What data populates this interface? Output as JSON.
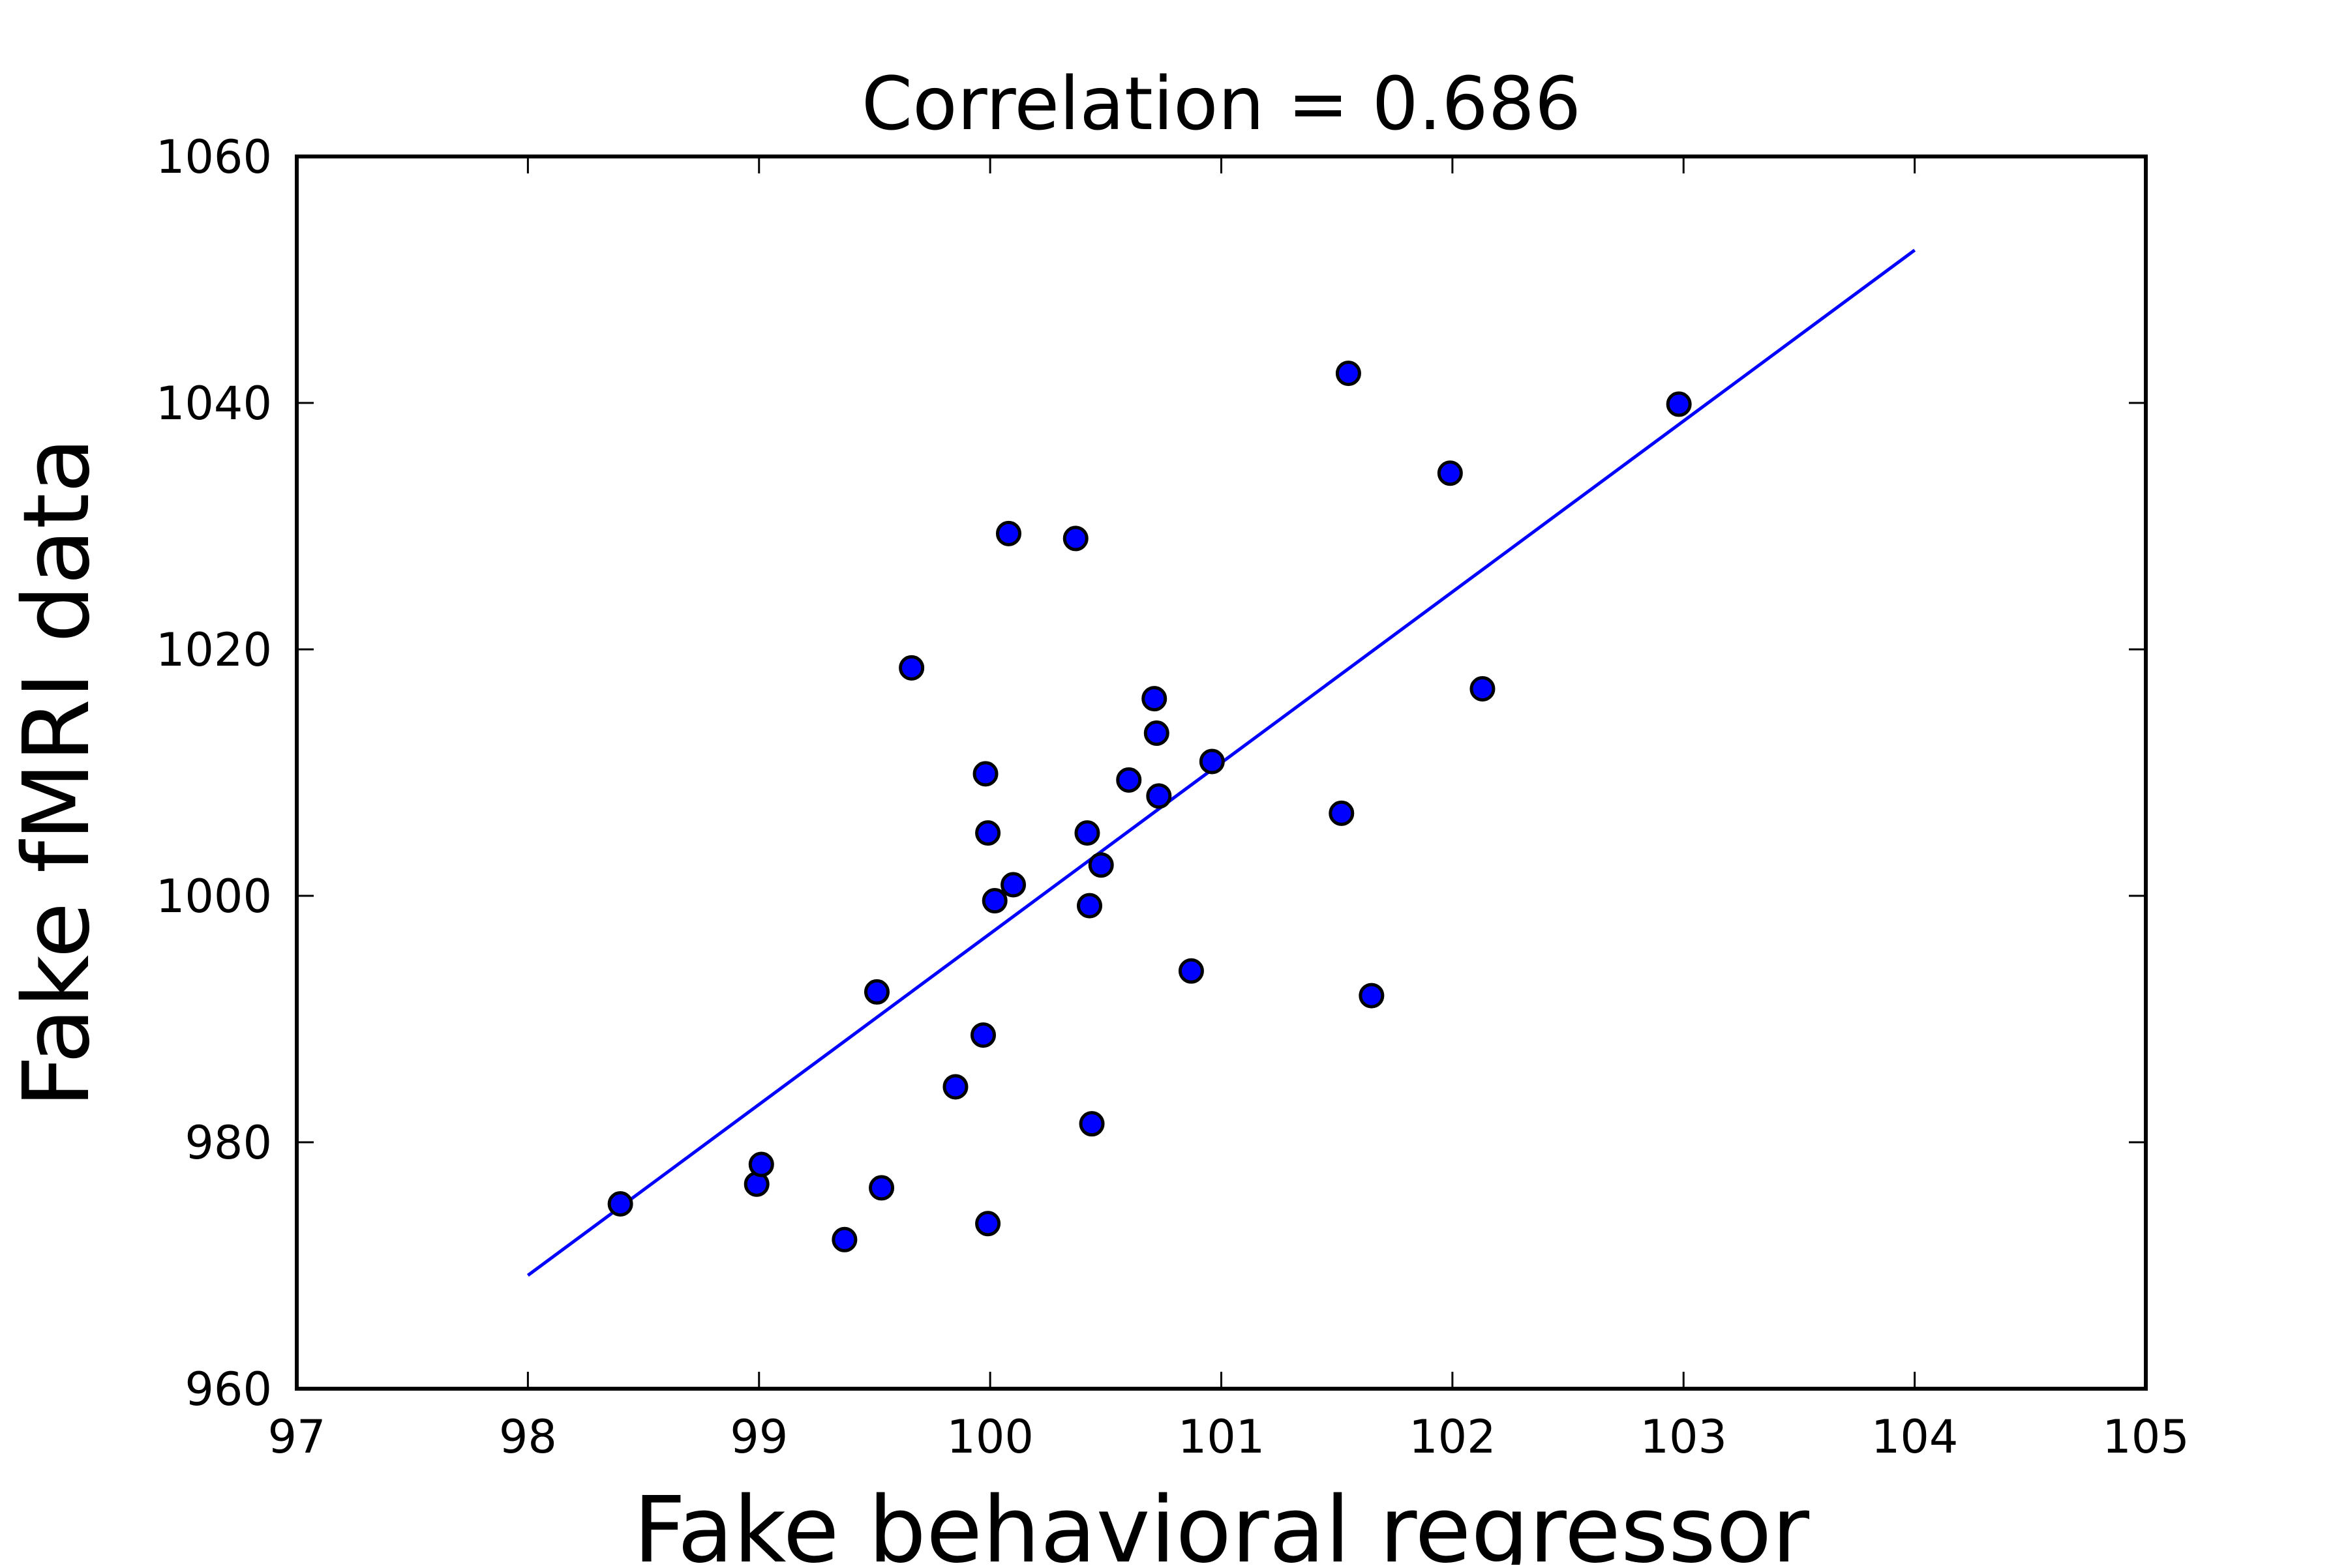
{
  "chart_data": {
    "type": "scatter",
    "title": "Correlation = 0.686",
    "xlabel": "Fake behavioral regressor",
    "ylabel": "Fake fMRI data",
    "xlim": [
      97,
      105
    ],
    "ylim": [
      960,
      1060
    ],
    "xticks": [
      "97",
      "98",
      "99",
      "100",
      "101",
      "102",
      "103",
      "104",
      "105"
    ],
    "yticks": [
      "960",
      "980",
      "1000",
      "1020",
      "1040",
      "1060"
    ],
    "grid": false,
    "legend": "none",
    "colors": {
      "points": "#0000ff",
      "line": "#0000ff",
      "edge": "#000000"
    },
    "series": [
      {
        "type": "scatter",
        "points": [
          {
            "x": 98.4,
            "y": 975.0
          },
          {
            "x": 98.99,
            "y": 976.6
          },
          {
            "x": 99.01,
            "y": 978.2
          },
          {
            "x": 99.37,
            "y": 972.1
          },
          {
            "x": 99.51,
            "y": 992.2
          },
          {
            "x": 99.53,
            "y": 976.3
          },
          {
            "x": 99.66,
            "y": 1018.5
          },
          {
            "x": 99.85,
            "y": 984.5
          },
          {
            "x": 99.97,
            "y": 988.7
          },
          {
            "x": 99.98,
            "y": 1009.9
          },
          {
            "x": 99.99,
            "y": 1005.1
          },
          {
            "x": 99.99,
            "y": 973.4
          },
          {
            "x": 100.02,
            "y": 999.6
          },
          {
            "x": 100.08,
            "y": 1029.4
          },
          {
            "x": 100.1,
            "y": 1000.9
          },
          {
            "x": 100.37,
            "y": 1029.0
          },
          {
            "x": 100.42,
            "y": 1005.1
          },
          {
            "x": 100.43,
            "y": 999.2
          },
          {
            "x": 100.44,
            "y": 981.5
          },
          {
            "x": 100.48,
            "y": 1002.5
          },
          {
            "x": 100.6,
            "y": 1009.4
          },
          {
            "x": 100.71,
            "y": 1016.0
          },
          {
            "x": 100.72,
            "y": 1013.2
          },
          {
            "x": 100.73,
            "y": 1008.1
          },
          {
            "x": 100.87,
            "y": 993.9
          },
          {
            "x": 100.96,
            "y": 1010.9
          },
          {
            "x": 101.52,
            "y": 1006.7
          },
          {
            "x": 101.55,
            "y": 1042.4
          },
          {
            "x": 101.65,
            "y": 991.9
          },
          {
            "x": 101.99,
            "y": 1034.3
          },
          {
            "x": 102.13,
            "y": 1016.8
          },
          {
            "x": 102.98,
            "y": 1039.9
          }
        ]
      },
      {
        "type": "line",
        "points": [
          {
            "x": 98.0,
            "y": 969.2
          },
          {
            "x": 104.0,
            "y": 1052.4
          }
        ]
      }
    ]
  }
}
